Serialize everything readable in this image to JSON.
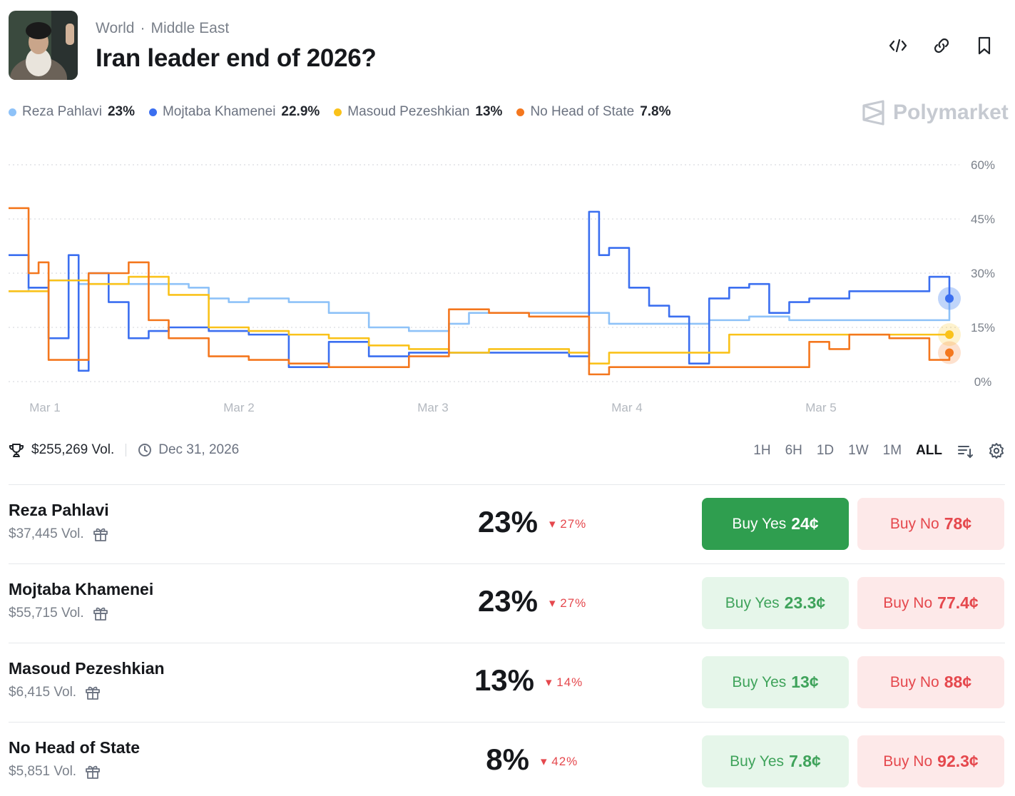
{
  "header": {
    "category": "World",
    "subcategory": "Middle East",
    "title": "Iran leader end of 2026?",
    "icons": [
      "embed-icon",
      "link-icon",
      "bookmark-icon"
    ]
  },
  "brand": "Polymarket",
  "legend": [
    {
      "name": "Reza Pahlavi",
      "value": "23%",
      "color": "#8ec2f8"
    },
    {
      "name": "Mojtaba Khamenei",
      "value": "22.9%",
      "color": "#3b6ff0"
    },
    {
      "name": "Masoud Pezeshkian",
      "value": "13%",
      "color": "#fac21a"
    },
    {
      "name": "No Head of State",
      "value": "7.8%",
      "color": "#f4771e"
    }
  ],
  "chart_data": {
    "type": "line",
    "x_labels": [
      "Mar 1",
      "Mar 2",
      "Mar 3",
      "Mar 4",
      "Mar 5"
    ],
    "y_ticks": [
      "0%",
      "15%",
      "30%",
      "45%",
      "60%"
    ],
    "ylim": [
      0,
      60
    ],
    "grid": true,
    "series": [
      {
        "name": "Reza Pahlavi",
        "color": "#8ec2f8",
        "x": [
          0.0,
          0.1,
          0.2,
          0.3,
          0.35,
          0.5,
          0.7,
          0.9,
          1.0,
          1.1,
          1.2,
          1.4,
          1.6,
          1.8,
          2.0,
          2.2,
          2.3,
          2.5,
          2.7,
          2.9,
          3.0,
          3.1,
          3.3,
          3.5,
          3.7,
          3.9,
          4.0,
          4.2,
          4.4,
          4.6,
          4.7
        ],
        "y": [
          25,
          26,
          28,
          28,
          27,
          27,
          27,
          26,
          23,
          22,
          23,
          22,
          19,
          15,
          14,
          16,
          19,
          19,
          19,
          19,
          16,
          16,
          16,
          17,
          18,
          17,
          17,
          17,
          17,
          17,
          23
        ]
      },
      {
        "name": "Mojtaba Khamenei",
        "color": "#3b6ff0",
        "x": [
          0.0,
          0.1,
          0.2,
          0.3,
          0.35,
          0.4,
          0.5,
          0.6,
          0.7,
          0.8,
          1.0,
          1.2,
          1.4,
          1.6,
          1.8,
          2.0,
          2.2,
          2.4,
          2.6,
          2.8,
          2.9,
          2.95,
          3.0,
          3.1,
          3.2,
          3.3,
          3.4,
          3.5,
          3.6,
          3.7,
          3.8,
          3.9,
          4.0,
          4.2,
          4.4,
          4.6,
          4.7
        ],
        "y": [
          35,
          26,
          12,
          35,
          3,
          30,
          22,
          12,
          14,
          15,
          14,
          13,
          4,
          11,
          7,
          8,
          8,
          8,
          8,
          7,
          47,
          35,
          37,
          26,
          21,
          18,
          5,
          23,
          26,
          27,
          19,
          22,
          23,
          25,
          25,
          29,
          23
        ]
      },
      {
        "name": "Masoud Pezeshkian",
        "color": "#fac21a",
        "x": [
          0.0,
          0.2,
          0.4,
          0.6,
          0.8,
          1.0,
          1.2,
          1.4,
          1.6,
          1.8,
          2.0,
          2.2,
          2.4,
          2.6,
          2.8,
          2.9,
          3.0,
          3.2,
          3.4,
          3.6,
          3.8,
          4.0,
          4.2,
          4.4,
          4.6,
          4.7
        ],
        "y": [
          25,
          28,
          27,
          29,
          24,
          15,
          14,
          13,
          12,
          10,
          9,
          8,
          9,
          9,
          8,
          5,
          8,
          8,
          8,
          13,
          13,
          13,
          13,
          13,
          13,
          13
        ]
      },
      {
        "name": "No Head of State",
        "color": "#f4771e",
        "x": [
          0.0,
          0.1,
          0.15,
          0.2,
          0.3,
          0.4,
          0.5,
          0.6,
          0.7,
          0.8,
          1.0,
          1.2,
          1.4,
          1.6,
          1.8,
          2.0,
          2.2,
          2.4,
          2.6,
          2.8,
          2.9,
          3.0,
          3.1,
          3.3,
          3.5,
          3.7,
          3.9,
          4.0,
          4.1,
          4.2,
          4.4,
          4.6,
          4.7
        ],
        "y": [
          48,
          30,
          33,
          6,
          6,
          30,
          30,
          33,
          17,
          12,
          7,
          6,
          5,
          4,
          4,
          7,
          20,
          19,
          18,
          18,
          2,
          4,
          4,
          4,
          4,
          4,
          4,
          11,
          9,
          13,
          12,
          6,
          8
        ]
      }
    ]
  },
  "meta": {
    "volume": "$255,269 Vol.",
    "end_date": "Dec 31, 2026"
  },
  "ranges": [
    "1H",
    "6H",
    "1D",
    "1W",
    "1M",
    "ALL"
  ],
  "outcomes": [
    {
      "name": "Reza Pahlavi",
      "volume": "$37,445 Vol.",
      "percent": "23%",
      "change": "27%",
      "yes_label": "Buy Yes",
      "yes_price": "24¢",
      "no_label": "Buy No",
      "no_price": "78¢"
    },
    {
      "name": "Mojtaba Khamenei",
      "volume": "$55,715 Vol.",
      "percent": "23%",
      "change": "27%",
      "yes_label": "Buy Yes",
      "yes_price": "23.3¢",
      "no_label": "Buy No",
      "no_price": "77.4¢"
    },
    {
      "name": "Masoud Pezeshkian",
      "volume": "$6,415 Vol.",
      "percent": "13%",
      "change": "14%",
      "yes_label": "Buy Yes",
      "yes_price": "13¢",
      "no_label": "Buy No",
      "no_price": "88¢"
    },
    {
      "name": "No Head of State",
      "volume": "$5,851 Vol.",
      "percent": "8%",
      "change": "42%",
      "yes_label": "Buy Yes",
      "yes_price": "7.8¢",
      "no_label": "Buy No",
      "no_price": "92.3¢"
    }
  ]
}
